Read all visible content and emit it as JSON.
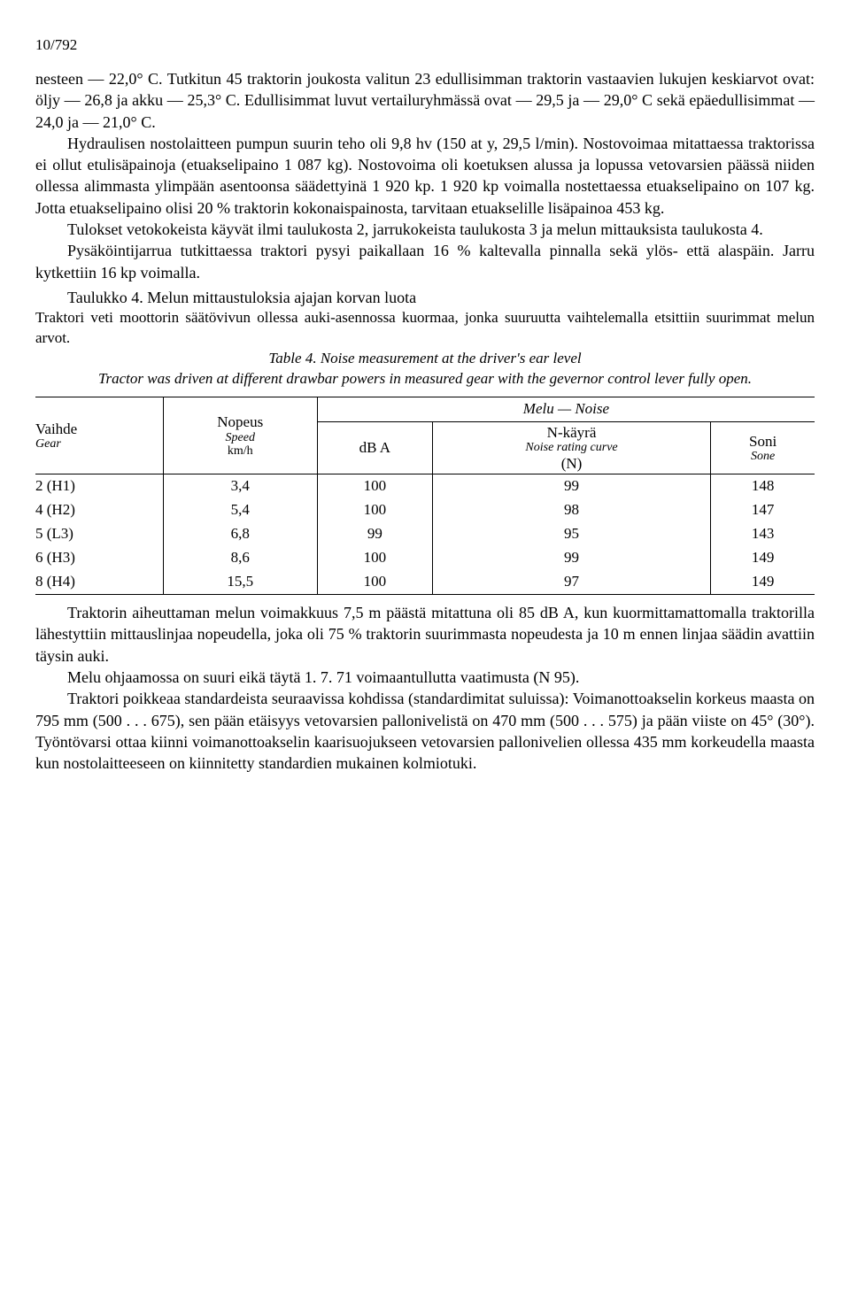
{
  "page_header": "10/792",
  "p1": "nesteen — 22,0° C. Tutkitun 45 traktorin joukosta valitun 23 edullisimman traktorin vastaavien lukujen keskiarvot ovat: öljy — 26,8 ja akku — 25,3° C. Edullisimmat luvut vertailuryhmässä ovat — 29,5 ja — 29,0° C sekä epäedullisimmat — 24,0 ja — 21,0° C.",
  "p2": "Hydraulisen nostolaitteen pumpun suurin teho oli 9,8 hv (150 at y, 29,5 l/min). Nostovoimaa mitattaessa traktorissa ei ollut etulisäpainoja (etuakselipaino 1 087 kg). Nostovoima oli koetuksen alussa ja lopussa vetovarsien päässä niiden ollessa alimmasta ylimpään asentoonsa säädettyinä 1 920 kp. 1 920 kp voimalla nostettaessa etuakselipaino on 107 kg. Jotta etuakselipaino olisi 20 % traktorin kokonaispainosta, tarvitaan etuakselille lisäpainoa 453 kg.",
  "p3": "Tulokset vetokokeista käyvät ilmi taulukosta 2, jarrukokeista taulukosta 3 ja melun mittauksista taulukosta 4.",
  "p4": "Pysäköintijarrua tutkittaessa traktori pysyi paikallaan 16 % kaltevalla pinnalla sekä ylös- että alaspäin. Jarru kytkettiin 16 kp voimalla.",
  "table4": {
    "caption_fi": "Taulukko 4. Melun mittaustuloksia ajajan korvan luota",
    "note_fi": "Traktori veti moottorin säätövivun ollessa auki-asennossa kuormaa, jonka suuruutta vaihtelemalla etsittiin suurimmat melun arvot.",
    "caption_en": "Table 4. Noise measurement at the driver's ear level",
    "note_en": "Tractor was driven at different drawbar powers in measured gear with the gevernor control lever fully open.",
    "headers": {
      "gear": "Vaihde",
      "gear_en": "Gear",
      "speed": "Nopeus",
      "speed_en": "Speed",
      "speed_unit": "km/h",
      "noise": "Melu   —   Noise",
      "dba": "dB A",
      "ncurve": "N-käyrä",
      "ncurve_en": "Noise rating curve",
      "ncurve_unit": "(N)",
      "sone": "Soni",
      "sone_en": "Sone"
    },
    "rows": [
      {
        "gear": "2 (H1)",
        "speed": "3,4",
        "dba": "100",
        "n": "99",
        "sone": "148"
      },
      {
        "gear": "4 (H2)",
        "speed": "5,4",
        "dba": "100",
        "n": "98",
        "sone": "147"
      },
      {
        "gear": "5 (L3)",
        "speed": "6,8",
        "dba": "99",
        "n": "95",
        "sone": "143"
      },
      {
        "gear": "6 (H3)",
        "speed": "8,6",
        "dba": "100",
        "n": "99",
        "sone": "149"
      },
      {
        "gear": "8 (H4)",
        "speed": "15,5",
        "dba": "100",
        "n": "97",
        "sone": "149"
      }
    ]
  },
  "p5": "Traktorin aiheuttaman melun voimakkuus 7,5 m päästä mitattuna oli 85 dB A, kun kuormittamattomalla traktorilla lähestyttiin mittauslinjaa nopeudella, joka oli 75 % traktorin suurimmasta nopeudesta ja 10 m ennen linjaa säädin avattiin täysin auki.",
  "p6": "Melu ohjaamossa on suuri eikä täytä 1. 7. 71 voimaantullutta vaatimusta (N 95).",
  "p7": "Traktori poikkeaa standardeista seuraavissa kohdissa (standardimitat suluissa): Voimanottoakselin korkeus maasta on 795 mm (500 . . . 675), sen pään etäisyys vetovarsien pallonivelistä on 470 mm (500 . . . 575) ja pään viiste on 45° (30°). Työntövarsi ottaa kiinni voimanottoakselin kaarisuojukseen vetovarsien pallonivelien ollessa 435 mm korkeudella maasta kun nostolaitteeseen on kiinnitetty standardien mukainen kolmiotuki."
}
